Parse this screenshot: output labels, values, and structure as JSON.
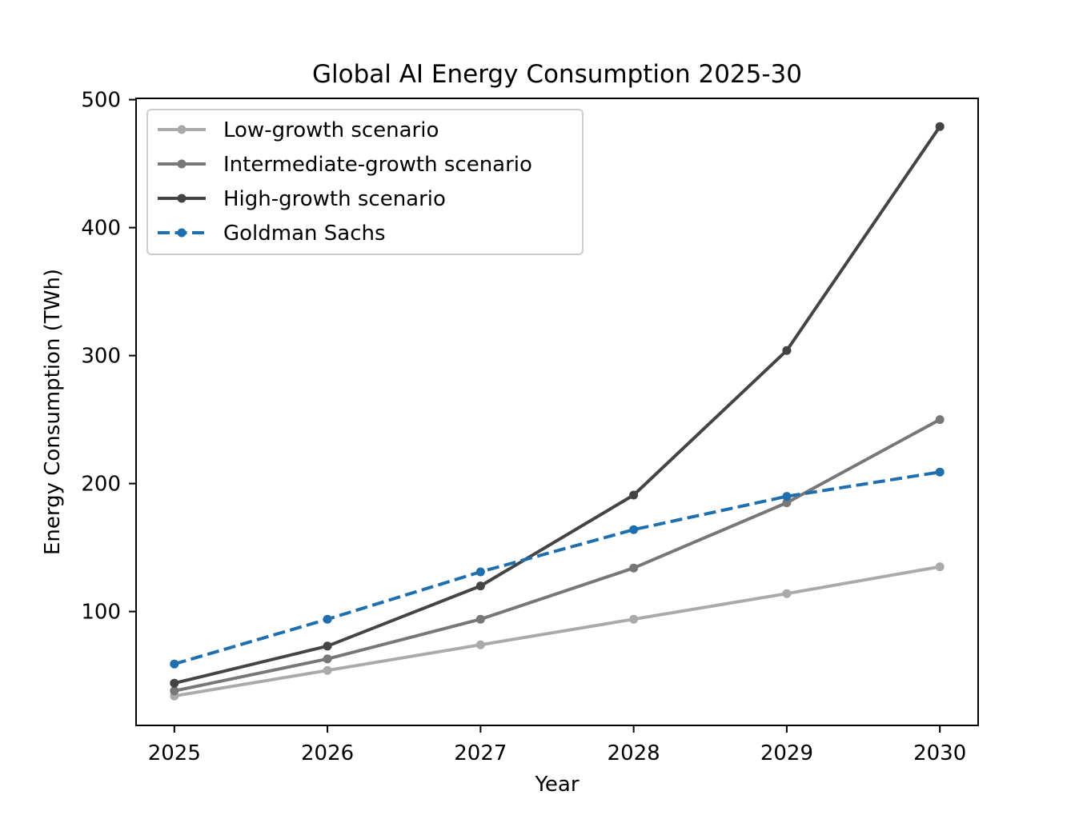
{
  "chart_data": {
    "type": "line",
    "title": "Global AI Energy Consumption 2025-30",
    "xlabel": "Year",
    "ylabel": "Energy Consumption (TWh)",
    "x": [
      2025,
      2026,
      2027,
      2028,
      2029,
      2030
    ],
    "xlim": [
      2024.75,
      2030.25
    ],
    "ylim": [
      11,
      501
    ],
    "yticks": [
      100,
      200,
      300,
      400,
      500
    ],
    "grid": false,
    "legend_position": "upper left",
    "series": [
      {
        "name": "Low-growth scenario",
        "values": [
          34,
          54,
          74,
          94,
          114,
          135
        ],
        "color": "#aaaaaa",
        "style": "solid"
      },
      {
        "name": "Intermediate-growth scenario",
        "values": [
          38,
          63,
          94,
          134,
          185,
          250
        ],
        "color": "#777777",
        "style": "solid"
      },
      {
        "name": "High-growth scenario",
        "values": [
          44,
          73,
          120,
          191,
          304,
          479
        ],
        "color": "#444444",
        "style": "solid"
      },
      {
        "name": "Goldman Sachs",
        "values": [
          59,
          94,
          131,
          164,
          190,
          209
        ],
        "color": "#1f6fae",
        "style": "dashed"
      }
    ]
  }
}
